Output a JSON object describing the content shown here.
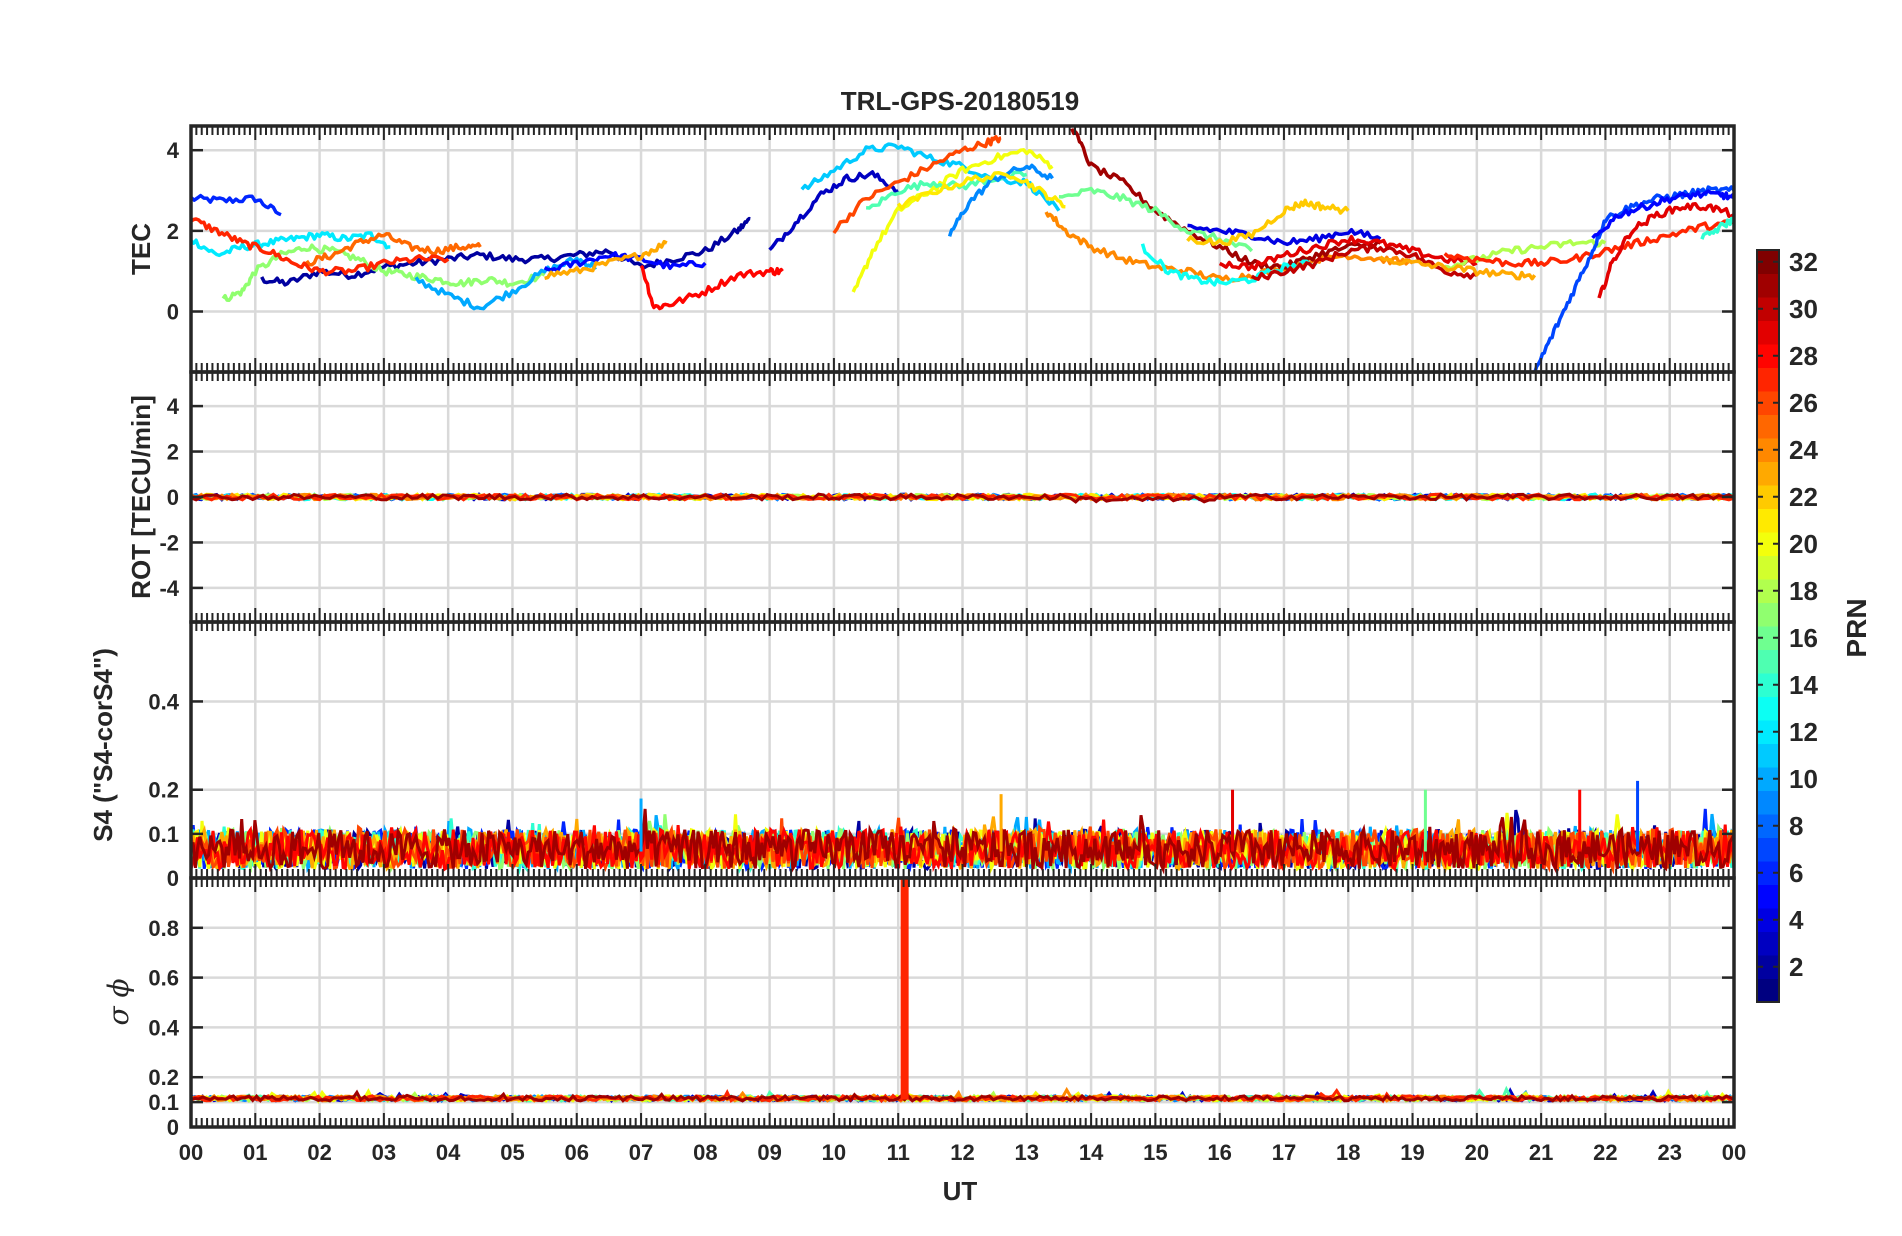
{
  "figure": {
    "title": "TRL-GPS-20180519",
    "xlabel": "UT",
    "x_ticks": [
      "00",
      "01",
      "02",
      "03",
      "04",
      "05",
      "06",
      "07",
      "08",
      "09",
      "10",
      "11",
      "12",
      "13",
      "14",
      "15",
      "16",
      "17",
      "18",
      "19",
      "20",
      "21",
      "22",
      "23",
      "00"
    ]
  },
  "colorbar": {
    "label": "PRN",
    "range": [
      1,
      32
    ],
    "ticks": [
      "2",
      "4",
      "6",
      "8",
      "10",
      "12",
      "14",
      "16",
      "18",
      "20",
      "22",
      "24",
      "26",
      "28",
      "30",
      "32"
    ],
    "colormap": "jet",
    "colors": [
      "#00008f",
      "#0000ff",
      "#0080ff",
      "#00ffff",
      "#80ff80",
      "#ffff00",
      "#ff8000",
      "#ff0000",
      "#800000"
    ]
  },
  "chart_data": [
    {
      "type": "line",
      "panel": "TEC",
      "ylabel": "TEC",
      "y_ticks": [
        "0",
        "2",
        "4"
      ],
      "ylim": [
        -1.5,
        4.6
      ],
      "xlim": [
        0,
        24
      ],
      "grid": true,
      "series": [
        {
          "prn": 6,
          "x": [
            0,
            0.5,
            1,
            1.4
          ],
          "y": [
            2.8,
            2.75,
            2.8,
            2.4
          ]
        },
        {
          "prn": 2,
          "x": [
            1.1,
            1.5,
            2,
            2.5,
            3,
            3.5,
            4,
            4.5,
            5,
            5.5,
            6,
            6.5,
            7,
            7.5,
            8,
            8.5,
            8.7
          ],
          "y": [
            0.8,
            0.7,
            1.0,
            0.9,
            1.1,
            1.2,
            1.3,
            1.4,
            1.3,
            1.3,
            1.4,
            1.5,
            1.1,
            1.3,
            1.5,
            2.0,
            2.3
          ]
        },
        {
          "prn": 12,
          "x": [
            0,
            0.4,
            0.8,
            1.2,
            1.6,
            2,
            2.4,
            2.8,
            3.1
          ],
          "y": [
            1.8,
            1.4,
            1.6,
            1.7,
            1.8,
            1.9,
            1.8,
            1.9,
            1.6
          ]
        },
        {
          "prn": 17,
          "x": [
            0.5,
            0.8,
            1,
            1.4,
            1.8,
            2.2,
            2.6,
            3,
            3.4,
            3.8,
            4.2,
            4.6,
            5,
            5.5
          ],
          "y": [
            0.3,
            0.5,
            1.0,
            1.4,
            1.6,
            1.5,
            1.3,
            1.0,
            0.9,
            0.8,
            0.7,
            0.8,
            0.7,
            0.9
          ]
        },
        {
          "prn": 25,
          "x": [
            1.8,
            2.2,
            2.6,
            3.0,
            3.4,
            3.8,
            4.2,
            4.5
          ],
          "y": [
            1.2,
            1.4,
            1.7,
            1.9,
            1.6,
            1.5,
            1.6,
            1.6
          ]
        },
        {
          "prn": 10,
          "x": [
            3.5,
            4,
            4.5,
            5,
            5.5,
            6,
            6.3
          ],
          "y": [
            0.8,
            0.4,
            0.1,
            0.5,
            1.0,
            1.3,
            1.1
          ]
        },
        {
          "prn": 27,
          "x": [
            0,
            0.4,
            0.8,
            1.2,
            1.6,
            2,
            2.5,
            3,
            3.5,
            4
          ],
          "y": [
            2.3,
            2.0,
            1.7,
            1.5,
            1.2,
            1.0,
            1.0,
            1.2,
            1.3,
            1.3
          ]
        },
        {
          "prn": 5,
          "x": [
            5.5,
            6,
            6.5,
            7,
            7.5,
            8
          ],
          "y": [
            1.0,
            1.2,
            1.4,
            1.3,
            1.1,
            1.2
          ]
        },
        {
          "prn": 23,
          "x": [
            5.5,
            6,
            6.5,
            7,
            7.4
          ],
          "y": [
            0.9,
            1.0,
            1.2,
            1.4,
            1.7
          ]
        },
        {
          "prn": 28,
          "x": [
            7,
            7.2,
            7.5,
            8,
            8.5,
            9,
            9.2
          ],
          "y": [
            1.2,
            0.1,
            0.2,
            0.5,
            0.9,
            1.0,
            1.0
          ]
        },
        {
          "prn": 3,
          "x": [
            9,
            9.4,
            9.8,
            10.2,
            10.6,
            11
          ],
          "y": [
            1.5,
            2.2,
            2.9,
            3.3,
            3.4,
            3.0
          ]
        },
        {
          "prn": 11,
          "x": [
            9.5,
            10,
            10.5,
            11,
            11.5,
            12,
            12.5,
            13,
            13.5
          ],
          "y": [
            3.0,
            3.5,
            4.0,
            4.1,
            3.8,
            3.6,
            3.3,
            3.2,
            2.5
          ]
        },
        {
          "prn": 20,
          "x": [
            10.3,
            10.6,
            11,
            11.5,
            12,
            12.5,
            13,
            13.4
          ],
          "y": [
            0.4,
            1.5,
            2.5,
            3.0,
            3.5,
            3.8,
            4.0,
            3.6
          ]
        },
        {
          "prn": 26,
          "x": [
            10,
            10.5,
            11,
            11.5,
            12,
            12.4,
            12.6
          ],
          "y": [
            2.0,
            2.8,
            3.2,
            3.6,
            4.0,
            4.2,
            4.3
          ]
        },
        {
          "prn": 15,
          "x": [
            10.5,
            11,
            11.5,
            12,
            12.5,
            13
          ],
          "y": [
            2.5,
            3.0,
            3.2,
            3.1,
            3.3,
            3.4
          ]
        },
        {
          "prn": 9,
          "x": [
            11.8,
            12.1,
            12.5,
            13,
            13.4
          ],
          "y": [
            1.9,
            2.7,
            3.3,
            3.6,
            3.3
          ]
        },
        {
          "prn": 21,
          "x": [
            11,
            11.6,
            12.2,
            12.8,
            13.2,
            13.6
          ],
          "y": [
            2.6,
            3.0,
            3.3,
            3.4,
            3.0,
            2.6
          ]
        },
        {
          "prn": 24,
          "x": [
            13.3,
            13.6,
            14,
            14.5,
            15,
            15.5,
            16,
            16.5,
            17,
            17.5,
            18,
            18.5,
            19
          ],
          "y": [
            2.5,
            2.0,
            1.6,
            1.3,
            1.1,
            1.0,
            0.8,
            0.9,
            1.1,
            1.3,
            1.4,
            1.3,
            1.2
          ]
        },
        {
          "prn": 31,
          "x": [
            13.7,
            14,
            14.5,
            15,
            15.5,
            16,
            16.5,
            17,
            17.5,
            18,
            18.5
          ],
          "y": [
            4.6,
            3.6,
            3.2,
            2.5,
            2.0,
            1.6,
            1.2,
            1.1,
            1.4,
            1.6,
            1.7
          ]
        },
        {
          "prn": 16,
          "x": [
            13.5,
            14,
            14.5,
            15,
            15.5,
            16,
            16.5
          ],
          "y": [
            2.8,
            3.0,
            2.8,
            2.5,
            2.0,
            1.8,
            1.5
          ]
        },
        {
          "prn": 4,
          "x": [
            15.5,
            16,
            16.5,
            17,
            17.5,
            18,
            18.5
          ],
          "y": [
            2.1,
            2.0,
            1.9,
            1.7,
            1.8,
            2.0,
            1.8
          ]
        },
        {
          "prn": 22,
          "x": [
            15.5,
            16,
            16.5,
            17,
            17.3,
            17.6,
            18
          ],
          "y": [
            1.8,
            1.7,
            1.9,
            2.5,
            2.7,
            2.6,
            2.5
          ]
        },
        {
          "prn": 13,
          "x": [
            14.8,
            15.2,
            15.6,
            16,
            16.5,
            17,
            17.5
          ],
          "y": [
            1.6,
            1.0,
            0.8,
            0.7,
            0.8,
            1.1,
            1.2
          ]
        },
        {
          "prn": 29,
          "x": [
            16,
            16.5,
            17,
            17.5,
            18,
            18.5,
            19,
            19.5,
            20
          ],
          "y": [
            1.2,
            1.1,
            1.4,
            1.6,
            1.8,
            1.7,
            1.5,
            1.3,
            1.2
          ]
        },
        {
          "prn": 30,
          "x": [
            16.5,
            17,
            17.5,
            18,
            18.5,
            19,
            19.5,
            20
          ],
          "y": [
            0.8,
            1.0,
            1.2,
            1.5,
            1.6,
            1.4,
            1.0,
            0.9
          ]
        },
        {
          "prn": 18,
          "x": [
            19.5,
            20,
            20.5,
            21,
            21.5,
            22
          ],
          "y": [
            1.1,
            1.3,
            1.5,
            1.6,
            1.7,
            1.7
          ]
        },
        {
          "prn": 23,
          "x": [
            18.5,
            19,
            19.5,
            20,
            20.5,
            20.9
          ],
          "y": [
            1.3,
            1.2,
            1.1,
            1.0,
            0.9,
            0.9
          ]
        },
        {
          "prn": 27,
          "x": [
            19.5,
            20,
            20.5,
            21,
            21.5,
            22,
            22.5,
            23,
            23.5,
            24
          ],
          "y": [
            1.4,
            1.3,
            1.2,
            1.2,
            1.3,
            1.5,
            1.7,
            1.9,
            2.1,
            2.2
          ]
        },
        {
          "prn": 7,
          "x": [
            20.9,
            21.2,
            21.5,
            21.8,
            22,
            22.4,
            22.8,
            23.2,
            23.6,
            24
          ],
          "y": [
            -1.5,
            -0.5,
            0.5,
            1.5,
            2.3,
            2.6,
            2.8,
            2.9,
            3.0,
            3.0
          ]
        },
        {
          "prn": 5,
          "x": [
            21.8,
            22.2,
            22.6,
            23,
            23.4,
            23.8,
            24
          ],
          "y": [
            1.8,
            2.4,
            2.6,
            2.8,
            2.9,
            2.9,
            2.8
          ]
        },
        {
          "prn": 29,
          "x": [
            21.9,
            22.1,
            22.4,
            22.8,
            23.2,
            23.6,
            24
          ],
          "y": [
            0.3,
            1.2,
            2.0,
            2.4,
            2.6,
            2.6,
            2.4
          ]
        },
        {
          "prn": 14,
          "x": [
            23.5,
            23.8,
            24
          ],
          "y": [
            1.8,
            2.1,
            2.3
          ]
        }
      ]
    },
    {
      "type": "line",
      "panel": "ROT",
      "ylabel": "ROT [TECU/min]",
      "y_ticks": [
        "-4",
        "-2",
        "0",
        "2",
        "4"
      ],
      "ylim": [
        -5.5,
        5.5
      ],
      "xlim": [
        0,
        24
      ],
      "grid": true,
      "value_summary": "all PRNs fluctuate within about ±0.15 TECU/min around 0"
    },
    {
      "type": "line",
      "panel": "S4",
      "ylabel": "S4 (\"S4-corS4\")",
      "y_ticks": [
        "0",
        "0.1",
        "0.2",
        "0.4"
      ],
      "ylim": [
        0,
        0.58
      ],
      "xlim": [
        0,
        24
      ],
      "grid": true,
      "value_summary": "background mostly 0.02–0.12 with isolated spikes",
      "spikes": [
        {
          "x": 7.0,
          "y": 0.18,
          "prn": 10
        },
        {
          "x": 12.6,
          "y": 0.19,
          "prn": 23
        },
        {
          "x": 16.2,
          "y": 0.2,
          "prn": 29
        },
        {
          "x": 19.2,
          "y": 0.2,
          "prn": 16
        },
        {
          "x": 21.6,
          "y": 0.2,
          "prn": 28
        },
        {
          "x": 22.5,
          "y": 0.22,
          "prn": 7
        }
      ]
    },
    {
      "type": "line",
      "panel": "sigma_phi",
      "ylabel": "σ ϕ",
      "y_ticks": [
        "0",
        "0.1",
        "0.2",
        "0.4",
        "0.6",
        "0.8"
      ],
      "ylim": [
        0,
        1.0
      ],
      "xlim": [
        0,
        24
      ],
      "grid": true,
      "value_summary": "baseline about 0.1–0.13 for all PRNs",
      "spikes": [
        {
          "x": 11.1,
          "y": 1.0,
          "prn": 27
        }
      ]
    }
  ]
}
